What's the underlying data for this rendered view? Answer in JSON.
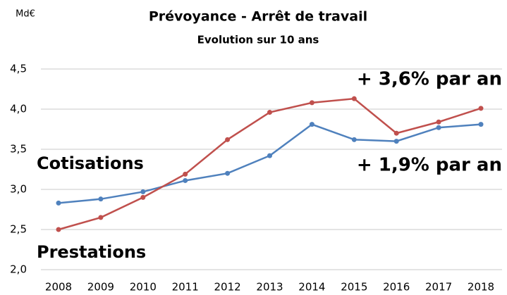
{
  "chart_data": {
    "type": "line",
    "title": "Prévoyance - Arrêt de travail",
    "subtitle": "Evolution sur 10 ans",
    "unit_label": "Md€",
    "categories": [
      "2008",
      "2009",
      "2010",
      "2011",
      "2012",
      "2013",
      "2014",
      "2015",
      "2016",
      "2017",
      "2018"
    ],
    "series": [
      {
        "name": "Cotisations",
        "color": "#4f81bd",
        "label_color": "#1f4e79",
        "values": [
          2.83,
          2.88,
          2.97,
          3.11,
          3.2,
          3.42,
          3.81,
          3.62,
          3.6,
          3.77,
          3.81
        ]
      },
      {
        "name": "Prestations",
        "color": "#c0504d",
        "label_color": "#c00000",
        "values": [
          2.5,
          2.65,
          2.9,
          3.19,
          3.62,
          3.96,
          4.08,
          4.13,
          3.7,
          3.84,
          4.01
        ]
      }
    ],
    "annotations": [
      {
        "text": "+ 3,6% par an",
        "color": "#c00000"
      },
      {
        "text": "+ 1,9% par an",
        "color": "#1f4e79"
      }
    ],
    "ylim": [
      2.0,
      4.5
    ],
    "yticks": [
      {
        "value": 2.0,
        "label": "2,0"
      },
      {
        "value": 2.5,
        "label": "2,5"
      },
      {
        "value": 3.0,
        "label": "3,0"
      },
      {
        "value": 3.5,
        "label": "3,5"
      },
      {
        "value": 4.0,
        "label": "4,0"
      },
      {
        "value": 4.5,
        "label": "4,5"
      }
    ],
    "grid": true
  }
}
